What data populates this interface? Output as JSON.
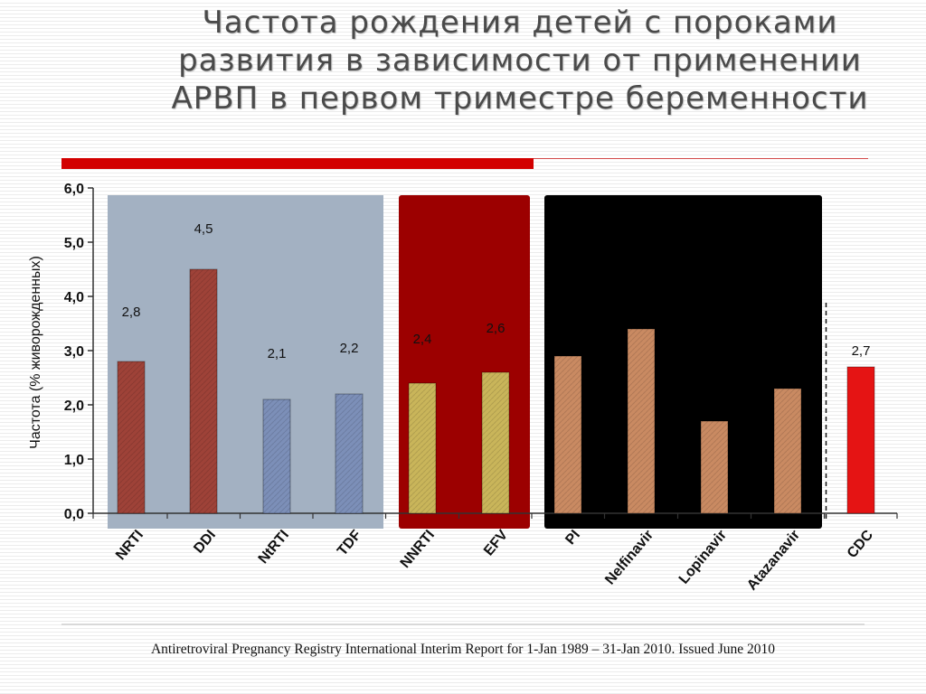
{
  "slide": {
    "title_lines": [
      "Частота рождения детей с пороками",
      "развития в зависимости от применении",
      "АРВП в первом триместре беременности"
    ],
    "source": "Antiretroviral Pregnancy Registry International Interim Report  for 1-Jan 1989 – 31-Jan 2010. Issued June 2010"
  },
  "colors": {
    "accent_rule": "#d20000",
    "nrti_group_bg": "#a3b1c2",
    "nnrti_group_bg": "#9c0000",
    "pi_group_bg": "#000000",
    "nrti_bar": "#9e4238",
    "nrti_bar_light": "#7c8fb8",
    "nnrti_bar": "#c9b55a",
    "pi_bar": "#c98a62",
    "cdc_bar": "#e51414"
  },
  "chart_data": {
    "type": "bar",
    "ylabel": "Частота  (% живорожденных)",
    "ylim": [
      0,
      6
    ],
    "yticks": [
      "0,0",
      "1,0",
      "2,0",
      "3,0",
      "4,0",
      "5,0",
      "6,0"
    ],
    "grid": false,
    "categories": [
      "NRTI",
      "DDI",
      "NtRTI",
      "TDF",
      "NNRTI",
      "EFV",
      "PI",
      "Nelfinavir",
      "Lopinavir",
      "Atazanavir",
      "CDC"
    ],
    "values": [
      2.8,
      4.5,
      2.1,
      2.2,
      2.4,
      2.6,
      2.9,
      3.4,
      1.7,
      2.3,
      2.7
    ],
    "data_labels": [
      "2,8",
      "4,5",
      "2,1",
      "2,2",
      "2,4",
      "2,6",
      "",
      "",
      "",
      "",
      "2,7"
    ],
    "bar_colors": [
      "#9e4238",
      "#9e4238",
      "#7c8fb8",
      "#7c8fb8",
      "#c9b55a",
      "#c9b55a",
      "#c98a62",
      "#c98a62",
      "#c98a62",
      "#c98a62",
      "#e51414"
    ],
    "groups": [
      {
        "from": 0,
        "to": 3,
        "color": "#a3b1c2"
      },
      {
        "from": 4,
        "to": 5,
        "color": "#9c0000"
      },
      {
        "from": 6,
        "to": 9,
        "color": "#000000"
      }
    ],
    "separator_before": 10
  }
}
